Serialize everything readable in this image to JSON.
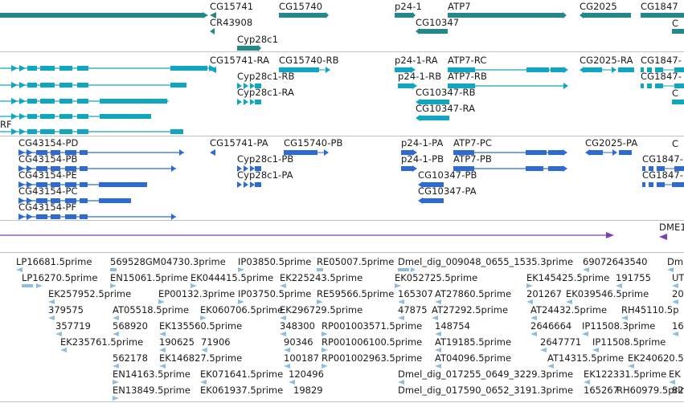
{
  "colors": {
    "gene": "#23888a",
    "mrna": "#10a6c0",
    "protein": "#2e6ad6",
    "misc": "#7b40b5",
    "est": "#8fbce0",
    "separator": "#bfc3c7"
  },
  "genes": [
    {
      "label": "CG15741"
    },
    {
      "label": "CG15740"
    },
    {
      "label": "p24-1"
    },
    {
      "label": "ATP7"
    },
    {
      "label": "CG2025"
    },
    {
      "label": "CG1847"
    },
    {
      "label": "CR43908"
    },
    {
      "label": "CG10347"
    },
    {
      "label": "Cyp28c1"
    }
  ],
  "transcripts": [
    {
      "label": "CG15741-RA"
    },
    {
      "label": "CG15740-RB"
    },
    {
      "label": "p24-1-RA"
    },
    {
      "label": "ATP7-RC"
    },
    {
      "label": "CG2025-RA"
    },
    {
      "label": "CG1847-"
    },
    {
      "label": "Cyp28c1-RB"
    },
    {
      "label": "p24-1-RB"
    },
    {
      "label": "ATP7-RB"
    },
    {
      "label": "CG1847-"
    },
    {
      "label": "Cyp28c1-RA"
    },
    {
      "label": "CG10347-RB"
    },
    {
      "label": "CG10347-RA"
    },
    {
      "label": "RF"
    }
  ],
  "proteins": [
    {
      "label": "CG43154-PD"
    },
    {
      "label": "CG15741-PA"
    },
    {
      "label": "CG15740-PB"
    },
    {
      "label": "p24-1-PA"
    },
    {
      "label": "ATP7-PC"
    },
    {
      "label": "CG2025-PA"
    },
    {
      "label": "CG43154-PB"
    },
    {
      "label": "Cyp28c1-PB"
    },
    {
      "label": "p24-1-PB"
    },
    {
      "label": "ATP7-PB"
    },
    {
      "label": "CG1847-"
    },
    {
      "label": "CG43154-PE"
    },
    {
      "label": "Cyp28c1-PA"
    },
    {
      "label": "CG10347-PB"
    },
    {
      "label": "CG1847-"
    },
    {
      "label": "CG43154-PC"
    },
    {
      "label": "CG10347-PA"
    },
    {
      "label": "CG43154-PF"
    }
  ],
  "misc_features": [
    {
      "label": "DME1"
    }
  ],
  "ests": [
    {
      "label": "LP16681.5prime"
    },
    {
      "label": "569528GM04730.3prime"
    },
    {
      "label": "IP03850.5prime"
    },
    {
      "label": "RE05007.5prime"
    },
    {
      "label": "Dmel_dig_009048_0655_1535.3prime"
    },
    {
      "label": "69072643540"
    },
    {
      "label": "Dm"
    },
    {
      "label": "LP16270.5prime"
    },
    {
      "label": "EN15061.5prime"
    },
    {
      "label": "EK044415.5prime"
    },
    {
      "label": "EK225243.5prime"
    },
    {
      "label": "EK052725.5prime"
    },
    {
      "label": "EK145425.5prime"
    },
    {
      "label": "191755"
    },
    {
      "label": "UT"
    },
    {
      "label": "EK257952.5prime"
    },
    {
      "label": "EP00132.3prime"
    },
    {
      "label": "IP03750.5prime"
    },
    {
      "label": "RE59566.5prime"
    },
    {
      "label": "165307"
    },
    {
      "label": "AT27860.5prime"
    },
    {
      "label": "201267"
    },
    {
      "label": "EK039546.5prime"
    },
    {
      "label": "20"
    },
    {
      "label": "379575"
    },
    {
      "label": "AT05518.5prime"
    },
    {
      "label": "EK060706.5prime"
    },
    {
      "label": "EK296729.5prime"
    },
    {
      "label": "47875"
    },
    {
      "label": "AT27292.5prime"
    },
    {
      "label": "AT24432.5prime"
    },
    {
      "label": "RH45110.5p"
    },
    {
      "label": "357719"
    },
    {
      "label": "568920"
    },
    {
      "label": "EK135560.5prime"
    },
    {
      "label": "348300"
    },
    {
      "label": "RP001003571.5prime"
    },
    {
      "label": "148754"
    },
    {
      "label": "2646664"
    },
    {
      "label": "IP11508.3prime"
    },
    {
      "label": "16"
    },
    {
      "label": "EK235761.5prime"
    },
    {
      "label": "190625"
    },
    {
      "label": "71906"
    },
    {
      "label": "90346"
    },
    {
      "label": "RP001006100.5prime"
    },
    {
      "label": "AT19185.5prime"
    },
    {
      "label": "2647771"
    },
    {
      "label": "IP11508.5prime"
    },
    {
      "label": "562178"
    },
    {
      "label": "EK146827.5prime"
    },
    {
      "label": "100187"
    },
    {
      "label": "RP001002963.5prime"
    },
    {
      "label": "AT04096.5prime"
    },
    {
      "label": "AT14315.5prime"
    },
    {
      "label": "EK240620.5"
    },
    {
      "label": "EN14163.5prime"
    },
    {
      "label": "EK071641.5prime"
    },
    {
      "label": "120496"
    },
    {
      "label": "Dmel_dig_017255_0649_3229.3prime"
    },
    {
      "label": "EK122331.5prime"
    },
    {
      "label": "EK"
    },
    {
      "label": "EN13849.5prime"
    },
    {
      "label": "EK061937.5prime"
    },
    {
      "label": "19829"
    },
    {
      "label": "Dmel_dig_017590_0652_3191.3prime"
    },
    {
      "label": "165267"
    },
    {
      "label": "RH60979.5prime"
    },
    {
      "label": "82"
    }
  ]
}
